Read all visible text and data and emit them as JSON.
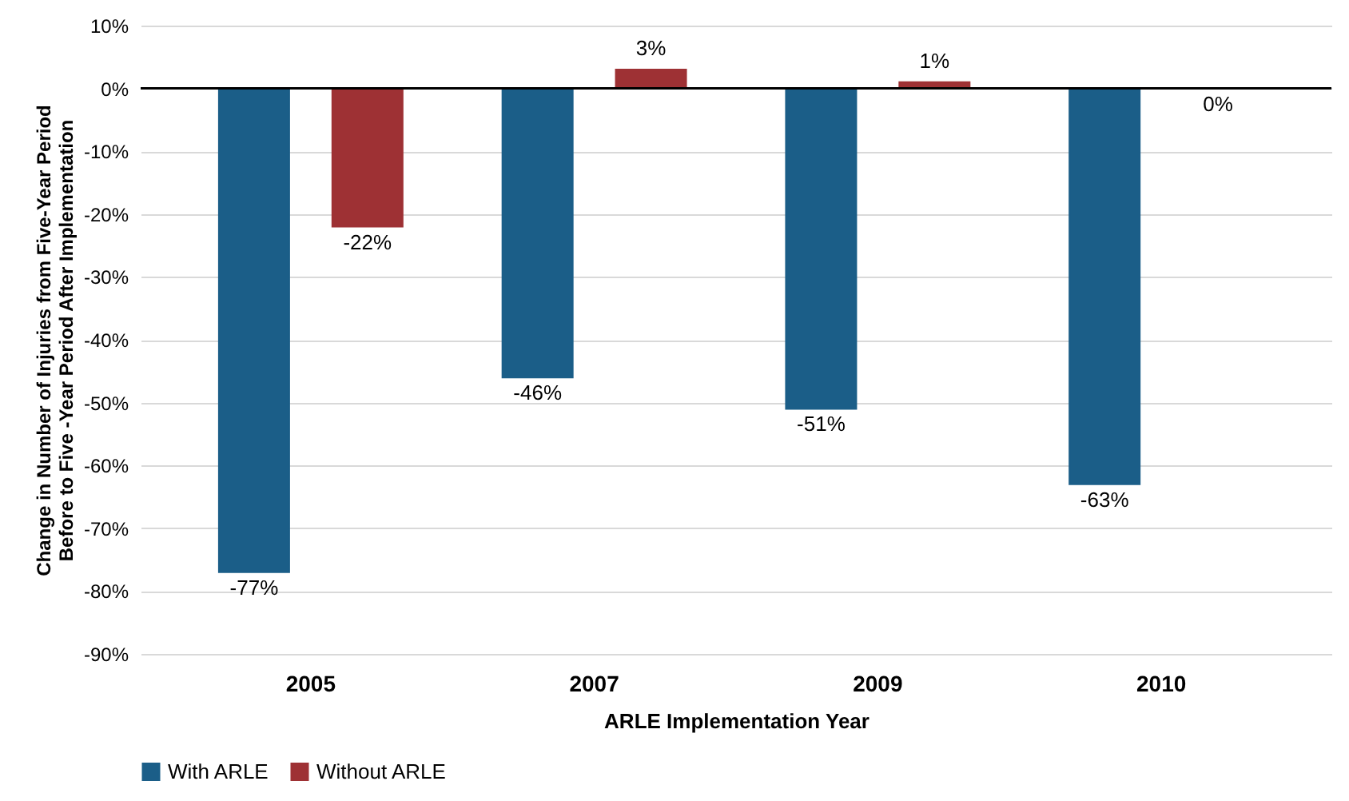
{
  "chart_data": {
    "type": "bar",
    "xlabel": "ARLE Implementation Year",
    "ylabel": "Change in Number of Injuries from Five-Year Period\nBefore to Five -Year Period After Implementation",
    "categories": [
      "2005",
      "2007",
      "2009",
      "2010"
    ],
    "series": [
      {
        "name": "With ARLE",
        "color": "#1b5e88",
        "values": [
          -77,
          -46,
          -51,
          -63
        ],
        "value_labels": [
          "-77%",
          "-46%",
          "-51%",
          "-63%"
        ]
      },
      {
        "name": "Without ARLE",
        "color": "#9e3134",
        "values": [
          -22,
          3,
          1,
          0
        ],
        "value_labels": [
          "-22%",
          "3%",
          "1%",
          "0%"
        ]
      }
    ],
    "ylim": [
      -90,
      10
    ],
    "yticks": [
      {
        "value": 10,
        "label": "10%"
      },
      {
        "value": 0,
        "label": "0%"
      },
      {
        "value": -10,
        "label": "-10%"
      },
      {
        "value": -20,
        "label": "-20%"
      },
      {
        "value": -30,
        "label": "-30%"
      },
      {
        "value": -40,
        "label": "-40%"
      },
      {
        "value": -50,
        "label": "-50%"
      },
      {
        "value": -60,
        "label": "-60%"
      },
      {
        "value": -70,
        "label": "-70%"
      },
      {
        "value": -80,
        "label": "-80%"
      },
      {
        "value": -90,
        "label": "-90%"
      }
    ],
    "grid": "y",
    "legend": "bottom"
  }
}
